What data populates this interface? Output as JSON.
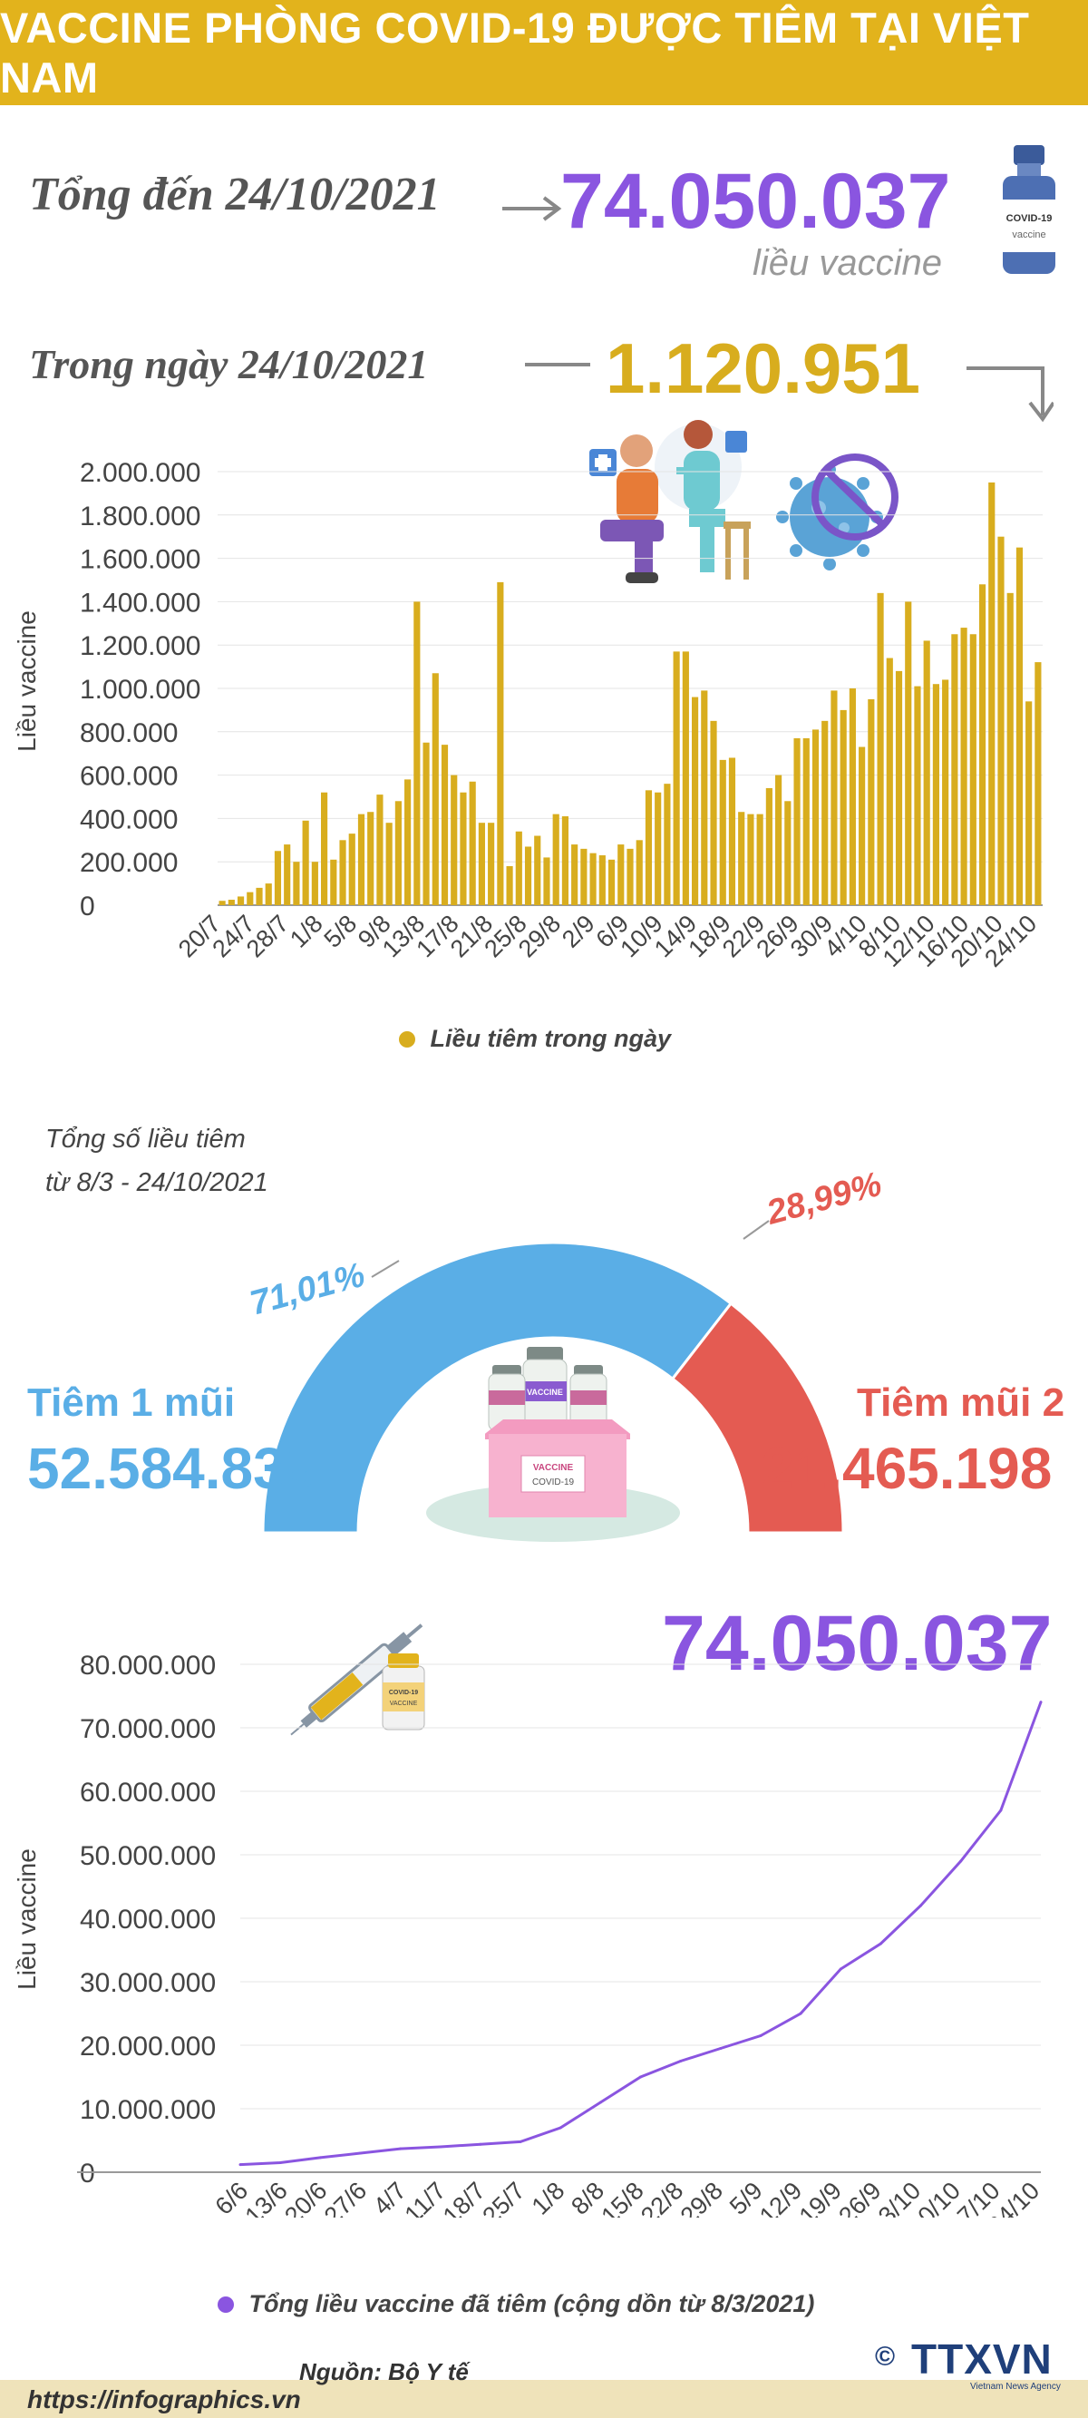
{
  "header": {
    "title": "VACCINE PHÒNG COVID-19 ĐƯỢC TIÊM TẠI VIỆT NAM"
  },
  "summary": {
    "total_label": "Tổng đến 24/10/2021",
    "total_value": "74.050.037",
    "total_unit": "liều vaccine",
    "daily_label": "Trong ngày 24/10/2021",
    "daily_value": "1.120.951"
  },
  "donut": {
    "caption_line1": "Tổng số liều tiêm",
    "caption_line2": "từ 8/3 - 24/10/2021",
    "dose1_label": "Tiêm 1 mũi",
    "dose1_value": "52.584.839",
    "dose1_pct": "71,01%",
    "dose2_label": "Tiêm mũi 2",
    "dose2_value": "21.465.198",
    "dose2_pct": "28,99%",
    "dose1_color": "#5aaee6",
    "dose2_color": "#e45b52"
  },
  "icons": {
    "vial_label": "COVID-19 vaccine",
    "box_label": "VACCINE",
    "box_sub": "COVID-19",
    "small_vial_label": "COVID-19 VACCINE",
    "vial_mini_label": "VACCINE"
  },
  "footer": {
    "url": "https://infographics.vn",
    "source": "Nguồn: Bộ Y tế",
    "logo": "TTXVN",
    "logo_sub": "Vietnam News Agency",
    "copyright": "©"
  },
  "chart_data": [
    {
      "type": "bar",
      "ylabel": "Liều vaccine",
      "ylim": [
        0,
        2000000
      ],
      "yticks": [
        "2.000.000",
        "1.800.000",
        "1.600.000",
        "1.400.000",
        "1.200.000",
        "1.000.000",
        "800.000",
        "600.000",
        "400.000",
        "200.000",
        "0"
      ],
      "xticks": [
        "20/7",
        "24/7",
        "28/7",
        "1/8",
        "5/8",
        "9/8",
        "13/8",
        "17/8",
        "21/8",
        "25/8",
        "29/8",
        "2/9",
        "6/9",
        "10/9",
        "14/9",
        "18/9",
        "22/9",
        "26/9",
        "30/9",
        "4/10",
        "8/10",
        "12/10",
        "16/10",
        "20/10",
        "24/10"
      ],
      "series": [
        {
          "name": "Liều tiêm trong ngày",
          "color": "#d8ad1e",
          "values": [
            20000,
            25000,
            40000,
            60000,
            80000,
            100000,
            250000,
            280000,
            200000,
            390000,
            200000,
            520000,
            210000,
            300000,
            330000,
            420000,
            430000,
            510000,
            380000,
            480000,
            580000,
            1400000,
            750000,
            1070000,
            740000,
            600000,
            520000,
            570000,
            380000,
            380000,
            1490000,
            180000,
            340000,
            270000,
            320000,
            220000,
            420000,
            410000,
            280000,
            260000,
            240000,
            230000,
            210000,
            280000,
            260000,
            300000,
            530000,
            520000,
            560000,
            1170000,
            1170000,
            960000,
            990000,
            850000,
            670000,
            680000,
            430000,
            420000,
            420000,
            540000,
            600000,
            480000,
            770000,
            770000,
            810000,
            850000,
            990000,
            900000,
            1000000,
            730000,
            950000,
            1440000,
            1140000,
            1080000,
            1400000,
            1010000,
            1220000,
            1020000,
            1040000,
            1250000,
            1280000,
            1250000,
            1480000,
            1950000,
            1700000,
            1440000,
            1650000,
            940000,
            1120951
          ]
        }
      ]
    },
    {
      "type": "pie",
      "title": "Tổng số liều tiêm từ 8/3 - 24/10/2021",
      "categories": [
        "Tiêm 1 mũi",
        "Tiêm mũi 2"
      ],
      "values": [
        71.01,
        28.99
      ],
      "counts": [
        52584839,
        21465198
      ],
      "colors": [
        "#5aaee6",
        "#e45b52"
      ]
    },
    {
      "type": "line",
      "ylabel": "Liều vaccine",
      "ylim": [
        0,
        80000000
      ],
      "yticks": [
        "80.000.000",
        "70.000.000",
        "60.000.000",
        "50.000.000",
        "40.000.000",
        "30.000.000",
        "20.000.000",
        "10.000.000",
        "0"
      ],
      "xticks": [
        "6/6",
        "13/6",
        "20/6",
        "27/6",
        "4/7",
        "11/7",
        "18/7",
        "25/7",
        "1/8",
        "8/8",
        "15/8",
        "22/8",
        "29/8",
        "5/9",
        "12/9",
        "19/9",
        "26/9",
        "3/10",
        "10/10",
        "17/10",
        "24/10"
      ],
      "highlight": "74.050.037",
      "series": [
        {
          "name": "Tổng liều vaccine đã tiêm (cộng dồn từ 8/3/2021)",
          "color": "#8a55e0",
          "values": [
            1200000,
            1500000,
            2300000,
            3000000,
            3700000,
            4000000,
            4400000,
            4800000,
            7000000,
            11000000,
            15000000,
            17500000,
            19500000,
            21500000,
            25000000,
            32000000,
            36000000,
            42000000,
            49000000,
            57000000,
            74050037
          ]
        }
      ]
    }
  ]
}
